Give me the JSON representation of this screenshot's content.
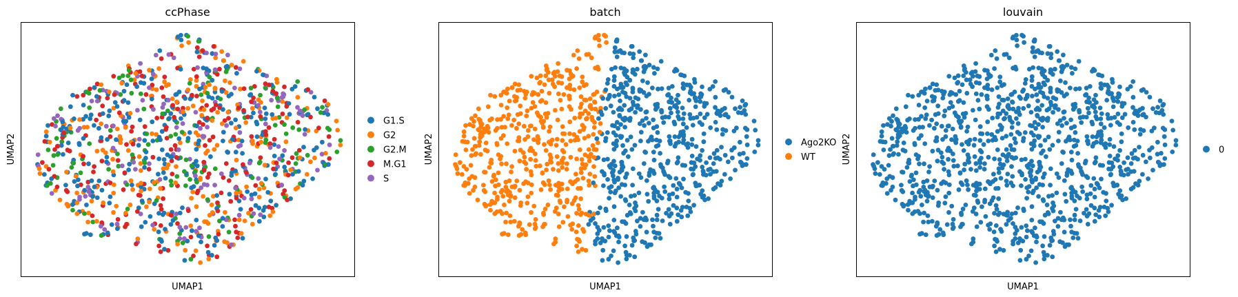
{
  "chart_data": [
    {
      "type": "scatter",
      "title": "ccPhase",
      "xlabel": "UMAP1",
      "ylabel": "UMAP2",
      "xticks": [],
      "yticks": [],
      "grid": false,
      "legend_position": "right",
      "legend": [
        {
          "label": "G1.S",
          "color": "#1f77b4"
        },
        {
          "label": "G2",
          "color": "#ff7f0e"
        },
        {
          "label": "G2.M",
          "color": "#2ca02c"
        },
        {
          "label": "M.G1",
          "color": "#d62728"
        },
        {
          "label": "S",
          "color": "#9467bd"
        }
      ],
      "series": [
        {
          "name": "G1.S",
          "color": "#1f77b4",
          "weight": 0.28
        },
        {
          "name": "G2",
          "color": "#ff7f0e",
          "weight": 0.22
        },
        {
          "name": "G2.M",
          "color": "#2ca02c",
          "weight": 0.14
        },
        {
          "name": "M.G1",
          "color": "#d62728",
          "weight": 0.2
        },
        {
          "name": "S",
          "color": "#9467bd",
          "weight": 0.16
        }
      ],
      "coloring": "mixed",
      "n_points": 1100,
      "seed": 7
    },
    {
      "type": "scatter",
      "title": "batch",
      "xlabel": "UMAP1",
      "ylabel": "UMAP2",
      "xticks": [],
      "yticks": [],
      "grid": false,
      "legend_position": "right",
      "legend": [
        {
          "label": "Ago2KO",
          "color": "#1f77b4"
        },
        {
          "label": "WT",
          "color": "#ff7f0e"
        }
      ],
      "series": [
        {
          "name": "Ago2KO",
          "color": "#1f77b4",
          "region": "right"
        },
        {
          "name": "WT",
          "color": "#ff7f0e",
          "region": "left"
        }
      ],
      "coloring": "split",
      "n_points": 1100,
      "seed": 7
    },
    {
      "type": "scatter",
      "title": "louvain",
      "xlabel": "UMAP1",
      "ylabel": "UMAP2",
      "xticks": [],
      "yticks": [],
      "grid": false,
      "legend_position": "right",
      "legend": [
        {
          "label": "0",
          "color": "#1f77b4"
        }
      ],
      "series": [
        {
          "name": "0",
          "color": "#1f77b4"
        }
      ],
      "coloring": "single",
      "n_points": 1100,
      "seed": 7
    }
  ]
}
